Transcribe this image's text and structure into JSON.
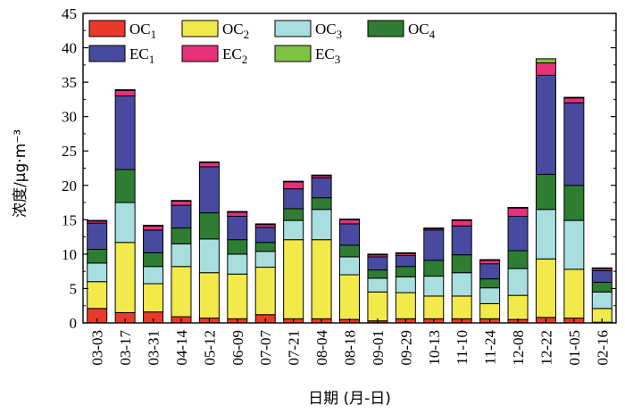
{
  "chart_data": {
    "type": "bar",
    "stacked": true,
    "title": "",
    "xlabel": "日期 (月-日)",
    "ylabel": "浓度/μg·m⁻³",
    "ylim": [
      0,
      45
    ],
    "yticks": [
      0,
      5,
      10,
      15,
      20,
      25,
      30,
      35,
      40,
      45
    ],
    "grid": false,
    "legend_position": "top-left",
    "categories": [
      "03-03",
      "03-17",
      "03-31",
      "04-14",
      "05-12",
      "06-09",
      "07-07",
      "07-21",
      "08-04",
      "08-18",
      "09-01",
      "09-29",
      "10-13",
      "11-10",
      "11-24",
      "12-08",
      "12-22",
      "01-05",
      "02-16"
    ],
    "series": [
      {
        "name": "OC1",
        "color": "#e8392b",
        "values": [
          2.1,
          1.5,
          1.6,
          0.9,
          0.7,
          0.6,
          1.2,
          0.6,
          0.6,
          0.5,
          0.3,
          0.6,
          0.6,
          0.6,
          0.6,
          0.5,
          0.8,
          0.7,
          0.1
        ]
      },
      {
        "name": "OC2",
        "color": "#f2ea4a",
        "values": [
          3.9,
          10.2,
          4.1,
          7.3,
          6.6,
          6.5,
          6.9,
          11.5,
          11.5,
          6.5,
          4.2,
          3.8,
          3.3,
          3.3,
          2.2,
          3.5,
          8.5,
          7.1,
          2.0
        ]
      },
      {
        "name": "OC3",
        "color": "#a8dede",
        "values": [
          2.7,
          5.8,
          2.5,
          3.3,
          4.9,
          2.9,
          2.3,
          2.8,
          4.4,
          2.6,
          2.0,
          2.3,
          2.9,
          3.4,
          2.3,
          3.9,
          7.2,
          7.1,
          2.4
        ]
      },
      {
        "name": "OC4",
        "color": "#2e7d32",
        "values": [
          2.0,
          4.8,
          2.0,
          2.3,
          3.8,
          2.1,
          1.3,
          1.7,
          1.7,
          1.7,
          1.2,
          1.5,
          2.3,
          2.6,
          1.3,
          2.6,
          5.1,
          5.1,
          1.4
        ]
      },
      {
        "name": "EC1",
        "color": "#474a9e",
        "values": [
          3.8,
          10.7,
          3.3,
          3.3,
          6.7,
          3.4,
          2.2,
          2.9,
          2.9,
          3.1,
          1.9,
          1.6,
          4.4,
          4.2,
          2.2,
          5.0,
          14.4,
          12.0,
          1.7
        ]
      },
      {
        "name": "EC2",
        "color": "#e8307a",
        "values": [
          0.3,
          0.8,
          0.6,
          0.6,
          0.6,
          0.6,
          0.4,
          1.0,
          0.3,
          0.6,
          0.3,
          0.3,
          0.2,
          0.8,
          0.5,
          1.2,
          1.8,
          0.7,
          0.3
        ]
      },
      {
        "name": "EC3",
        "color": "#7dc242",
        "values": [
          0.1,
          0.1,
          0.1,
          0.1,
          0.1,
          0.1,
          0.1,
          0.1,
          0.1,
          0.1,
          0.1,
          0.1,
          0.1,
          0.1,
          0.1,
          0.1,
          0.6,
          0.1,
          0.1
        ]
      }
    ],
    "legend": [
      {
        "base": "OC",
        "sub": "1"
      },
      {
        "base": "OC",
        "sub": "2"
      },
      {
        "base": "OC",
        "sub": "3"
      },
      {
        "base": "OC",
        "sub": "4"
      },
      {
        "base": "EC",
        "sub": "1"
      },
      {
        "base": "EC",
        "sub": "2"
      },
      {
        "base": "EC",
        "sub": "3"
      }
    ]
  }
}
